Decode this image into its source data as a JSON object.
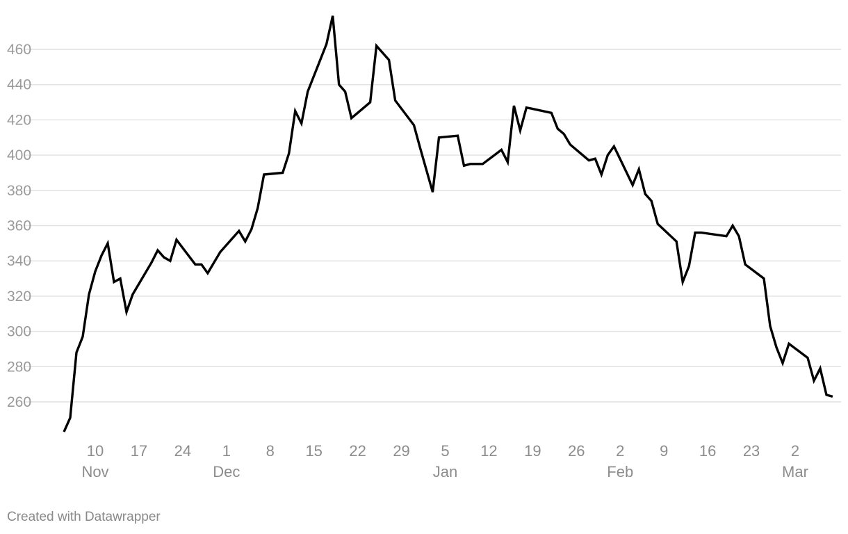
{
  "footer": {
    "credit": "Created with Datawrapper"
  },
  "chart_data": {
    "type": "line",
    "title": "",
    "xlabel": "",
    "ylabel": "",
    "grid": true,
    "line_color": "#000000",
    "gridline_color": "#e1e1e1",
    "ylim": [
      240,
      480
    ],
    "xlim": [
      "2021-11-05",
      "2022-03-08"
    ],
    "yticks": [
      {
        "value": 260,
        "label": "260"
      },
      {
        "value": 280,
        "label": "280"
      },
      {
        "value": 300,
        "label": "300"
      },
      {
        "value": 320,
        "label": "320"
      },
      {
        "value": 340,
        "label": "340"
      },
      {
        "value": 360,
        "label": "360"
      },
      {
        "value": 380,
        "label": "380"
      },
      {
        "value": 400,
        "label": "400"
      },
      {
        "value": 420,
        "label": "420"
      },
      {
        "value": 440,
        "label": "440"
      },
      {
        "value": 460,
        "label": "460"
      }
    ],
    "xticks": [
      {
        "date": "2021-11-10",
        "label": "10",
        "sublabel": "Nov"
      },
      {
        "date": "2021-11-17",
        "label": "17",
        "sublabel": ""
      },
      {
        "date": "2021-11-24",
        "label": "24",
        "sublabel": ""
      },
      {
        "date": "2021-12-01",
        "label": "1",
        "sublabel": "Dec"
      },
      {
        "date": "2021-12-08",
        "label": "8",
        "sublabel": ""
      },
      {
        "date": "2021-12-15",
        "label": "15",
        "sublabel": ""
      },
      {
        "date": "2021-12-22",
        "label": "22",
        "sublabel": ""
      },
      {
        "date": "2021-12-29",
        "label": "29",
        "sublabel": ""
      },
      {
        "date": "2022-01-05",
        "label": "5",
        "sublabel": "Jan"
      },
      {
        "date": "2022-01-12",
        "label": "12",
        "sublabel": ""
      },
      {
        "date": "2022-01-19",
        "label": "19",
        "sublabel": ""
      },
      {
        "date": "2022-01-26",
        "label": "26",
        "sublabel": ""
      },
      {
        "date": "2022-02-02",
        "label": "2",
        "sublabel": "Feb"
      },
      {
        "date": "2022-02-09",
        "label": "9",
        "sublabel": ""
      },
      {
        "date": "2022-02-16",
        "label": "16",
        "sublabel": ""
      },
      {
        "date": "2022-02-23",
        "label": "23",
        "sublabel": ""
      },
      {
        "date": "2022-03-02",
        "label": "2",
        "sublabel": "Mar"
      }
    ],
    "series": [
      {
        "points": [
          [
            "2021-11-05",
            243
          ],
          [
            "2021-11-06",
            251
          ],
          [
            "2021-11-07",
            288
          ],
          [
            "2021-11-08",
            297
          ],
          [
            "2021-11-09",
            321
          ],
          [
            "2021-11-10",
            334
          ],
          [
            "2021-11-11",
            343
          ],
          [
            "2021-11-12",
            350
          ],
          [
            "2021-11-13",
            328
          ],
          [
            "2021-11-14",
            330
          ],
          [
            "2021-11-15",
            311
          ],
          [
            "2021-11-16",
            321
          ],
          [
            "2021-11-19",
            339
          ],
          [
            "2021-11-20",
            346
          ],
          [
            "2021-11-21",
            342
          ],
          [
            "2021-11-22",
            340
          ],
          [
            "2021-11-23",
            352
          ],
          [
            "2021-11-26",
            338
          ],
          [
            "2021-11-27",
            338
          ],
          [
            "2021-11-28",
            333
          ],
          [
            "2021-11-30",
            345
          ],
          [
            "2021-12-03",
            357
          ],
          [
            "2021-12-04",
            351
          ],
          [
            "2021-12-05",
            358
          ],
          [
            "2021-12-06",
            370
          ],
          [
            "2021-12-07",
            389
          ],
          [
            "2021-12-10",
            390
          ],
          [
            "2021-12-11",
            401
          ],
          [
            "2021-12-12",
            425
          ],
          [
            "2021-12-13",
            418
          ],
          [
            "2021-12-14",
            436
          ],
          [
            "2021-12-17",
            463
          ],
          [
            "2021-12-18",
            479
          ],
          [
            "2021-12-19",
            440
          ],
          [
            "2021-12-20",
            436
          ],
          [
            "2021-12-21",
            421
          ],
          [
            "2021-12-24",
            430
          ],
          [
            "2021-12-25",
            462
          ],
          [
            "2021-12-27",
            454
          ],
          [
            "2021-12-28",
            431
          ],
          [
            "2021-12-31",
            417
          ],
          [
            "2022-01-01",
            404
          ],
          [
            "2022-01-03",
            379
          ],
          [
            "2022-01-04",
            410
          ],
          [
            "2022-01-07",
            411
          ],
          [
            "2022-01-08",
            394
          ],
          [
            "2022-01-09",
            395
          ],
          [
            "2022-01-11",
            395
          ],
          [
            "2022-01-14",
            403
          ],
          [
            "2022-01-15",
            396
          ],
          [
            "2022-01-16",
            428
          ],
          [
            "2022-01-17",
            414
          ],
          [
            "2022-01-18",
            427
          ],
          [
            "2022-01-22",
            424
          ],
          [
            "2022-01-23",
            415
          ],
          [
            "2022-01-24",
            412
          ],
          [
            "2022-01-25",
            406
          ],
          [
            "2022-01-28",
            397
          ],
          [
            "2022-01-29",
            398
          ],
          [
            "2022-01-30",
            389
          ],
          [
            "2022-01-31",
            400
          ],
          [
            "2022-02-01",
            405
          ],
          [
            "2022-02-04",
            383
          ],
          [
            "2022-02-05",
            392
          ],
          [
            "2022-02-06",
            378
          ],
          [
            "2022-02-07",
            374
          ],
          [
            "2022-02-08",
            361
          ],
          [
            "2022-02-11",
            351
          ],
          [
            "2022-02-12",
            328
          ],
          [
            "2022-02-13",
            337
          ],
          [
            "2022-02-14",
            356
          ],
          [
            "2022-02-15",
            356
          ],
          [
            "2022-02-19",
            354
          ],
          [
            "2022-02-20",
            360
          ],
          [
            "2022-02-21",
            354
          ],
          [
            "2022-02-22",
            338
          ],
          [
            "2022-02-25",
            330
          ],
          [
            "2022-02-26",
            303
          ],
          [
            "2022-02-27",
            291
          ],
          [
            "2022-02-28",
            282
          ],
          [
            "2022-03-01",
            293
          ],
          [
            "2022-03-04",
            285
          ],
          [
            "2022-03-05",
            272
          ],
          [
            "2022-03-06",
            279
          ],
          [
            "2022-03-07",
            264
          ],
          [
            "2022-03-08",
            263
          ]
        ]
      }
    ]
  }
}
